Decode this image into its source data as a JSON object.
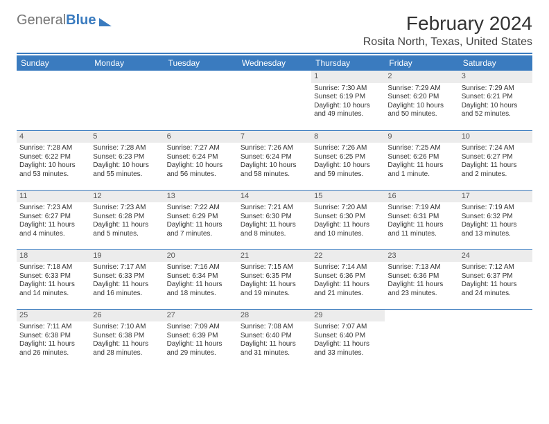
{
  "logo": {
    "part1": "General",
    "part2": "Blue"
  },
  "title": "February 2024",
  "location": "Rosita North, Texas, United States",
  "header_bg": "#3a7bbf",
  "header_text": "#ffffff",
  "rule_color": "#3a7bbf",
  "daynum_bg": "#ececec",
  "text_color": "#333333",
  "font_family": "Arial, Helvetica, sans-serif",
  "columns": [
    "Sunday",
    "Monday",
    "Tuesday",
    "Wednesday",
    "Thursday",
    "Friday",
    "Saturday"
  ],
  "weeks": [
    [
      null,
      null,
      null,
      null,
      {
        "n": "1",
        "sr": "7:30 AM",
        "ss": "6:19 PM",
        "dl": "10 hours and 49 minutes."
      },
      {
        "n": "2",
        "sr": "7:29 AM",
        "ss": "6:20 PM",
        "dl": "10 hours and 50 minutes."
      },
      {
        "n": "3",
        "sr": "7:29 AM",
        "ss": "6:21 PM",
        "dl": "10 hours and 52 minutes."
      }
    ],
    [
      {
        "n": "4",
        "sr": "7:28 AM",
        "ss": "6:22 PM",
        "dl": "10 hours and 53 minutes."
      },
      {
        "n": "5",
        "sr": "7:28 AM",
        "ss": "6:23 PM",
        "dl": "10 hours and 55 minutes."
      },
      {
        "n": "6",
        "sr": "7:27 AM",
        "ss": "6:24 PM",
        "dl": "10 hours and 56 minutes."
      },
      {
        "n": "7",
        "sr": "7:26 AM",
        "ss": "6:24 PM",
        "dl": "10 hours and 58 minutes."
      },
      {
        "n": "8",
        "sr": "7:26 AM",
        "ss": "6:25 PM",
        "dl": "10 hours and 59 minutes."
      },
      {
        "n": "9",
        "sr": "7:25 AM",
        "ss": "6:26 PM",
        "dl": "11 hours and 1 minute."
      },
      {
        "n": "10",
        "sr": "7:24 AM",
        "ss": "6:27 PM",
        "dl": "11 hours and 2 minutes."
      }
    ],
    [
      {
        "n": "11",
        "sr": "7:23 AM",
        "ss": "6:27 PM",
        "dl": "11 hours and 4 minutes."
      },
      {
        "n": "12",
        "sr": "7:23 AM",
        "ss": "6:28 PM",
        "dl": "11 hours and 5 minutes."
      },
      {
        "n": "13",
        "sr": "7:22 AM",
        "ss": "6:29 PM",
        "dl": "11 hours and 7 minutes."
      },
      {
        "n": "14",
        "sr": "7:21 AM",
        "ss": "6:30 PM",
        "dl": "11 hours and 8 minutes."
      },
      {
        "n": "15",
        "sr": "7:20 AM",
        "ss": "6:30 PM",
        "dl": "11 hours and 10 minutes."
      },
      {
        "n": "16",
        "sr": "7:19 AM",
        "ss": "6:31 PM",
        "dl": "11 hours and 11 minutes."
      },
      {
        "n": "17",
        "sr": "7:19 AM",
        "ss": "6:32 PM",
        "dl": "11 hours and 13 minutes."
      }
    ],
    [
      {
        "n": "18",
        "sr": "7:18 AM",
        "ss": "6:33 PM",
        "dl": "11 hours and 14 minutes."
      },
      {
        "n": "19",
        "sr": "7:17 AM",
        "ss": "6:33 PM",
        "dl": "11 hours and 16 minutes."
      },
      {
        "n": "20",
        "sr": "7:16 AM",
        "ss": "6:34 PM",
        "dl": "11 hours and 18 minutes."
      },
      {
        "n": "21",
        "sr": "7:15 AM",
        "ss": "6:35 PM",
        "dl": "11 hours and 19 minutes."
      },
      {
        "n": "22",
        "sr": "7:14 AM",
        "ss": "6:36 PM",
        "dl": "11 hours and 21 minutes."
      },
      {
        "n": "23",
        "sr": "7:13 AM",
        "ss": "6:36 PM",
        "dl": "11 hours and 23 minutes."
      },
      {
        "n": "24",
        "sr": "7:12 AM",
        "ss": "6:37 PM",
        "dl": "11 hours and 24 minutes."
      }
    ],
    [
      {
        "n": "25",
        "sr": "7:11 AM",
        "ss": "6:38 PM",
        "dl": "11 hours and 26 minutes."
      },
      {
        "n": "26",
        "sr": "7:10 AM",
        "ss": "6:38 PM",
        "dl": "11 hours and 28 minutes."
      },
      {
        "n": "27",
        "sr": "7:09 AM",
        "ss": "6:39 PM",
        "dl": "11 hours and 29 minutes."
      },
      {
        "n": "28",
        "sr": "7:08 AM",
        "ss": "6:40 PM",
        "dl": "11 hours and 31 minutes."
      },
      {
        "n": "29",
        "sr": "7:07 AM",
        "ss": "6:40 PM",
        "dl": "11 hours and 33 minutes."
      },
      null,
      null
    ]
  ],
  "labels": {
    "sunrise": "Sunrise: ",
    "sunset": "Sunset: ",
    "daylight": "Daylight: "
  }
}
